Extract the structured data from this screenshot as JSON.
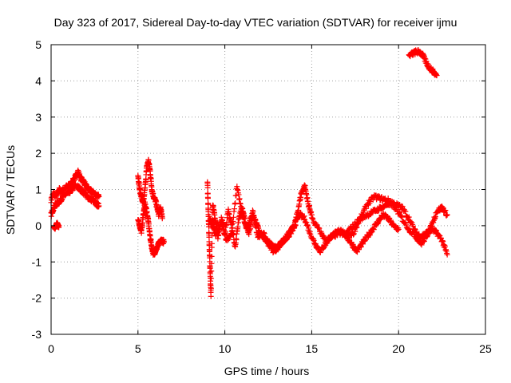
{
  "chart_data": {
    "type": "scatter",
    "title": "Day 323 of 2017, Sidereal Day-to-day VTEC variation (SDTVAR) for receiver ijmu",
    "xlabel": "GPS time / hours",
    "ylabel": "SDTVAR / TECUs",
    "xlim": [
      0,
      25
    ],
    "ylim": [
      -3,
      5
    ],
    "xticks": [
      0,
      5,
      10,
      15,
      20,
      25
    ],
    "yticks": [
      -3,
      -2,
      -1,
      0,
      1,
      2,
      3,
      4,
      5
    ],
    "grid": true,
    "marker": "+",
    "colors": {
      "series": "#ff0000",
      "grid": "#a0a0a0",
      "axis": "#000000"
    },
    "series": [
      {
        "name": "SDTVAR",
        "traces": [
          {
            "t": [
              0.0,
              0.15,
              0.3,
              0.45,
              0.6,
              0.8,
              1.0,
              1.2,
              1.4,
              1.55,
              1.7,
              1.85,
              2.0,
              2.15,
              2.3,
              2.45,
              2.6,
              2.75
            ],
            "v": [
              0.7,
              0.9,
              0.8,
              1.0,
              0.95,
              1.05,
              1.1,
              1.2,
              1.35,
              1.5,
              1.3,
              1.25,
              1.1,
              1.0,
              0.95,
              0.9,
              0.85,
              0.8
            ]
          },
          {
            "t": [
              0.0,
              0.15,
              0.3,
              0.45,
              0.6,
              0.8,
              1.0,
              1.2,
              1.4,
              1.6,
              1.8,
              2.0,
              2.2,
              2.4,
              2.6,
              2.75
            ],
            "v": [
              0.3,
              0.5,
              0.6,
              0.65,
              0.75,
              0.85,
              0.9,
              1.0,
              1.1,
              1.05,
              0.95,
              0.85,
              0.75,
              0.7,
              0.6,
              0.55
            ]
          },
          {
            "t": [
              0.15,
              0.25,
              0.35,
              0.45
            ],
            "v": [
              0.0,
              -0.05,
              0.05,
              0.0
            ]
          },
          {
            "t": [
              5.0,
              5.1,
              5.2,
              5.3,
              5.4,
              5.5,
              5.6,
              5.7,
              5.8,
              5.9,
              6.0,
              6.1,
              6.2,
              6.3,
              6.4
            ],
            "v": [
              1.4,
              1.0,
              0.8,
              0.6,
              1.0,
              1.6,
              1.8,
              1.5,
              1.0,
              0.8,
              0.7,
              0.5,
              0.3,
              0.5,
              0.2
            ]
          },
          {
            "t": [
              5.0,
              5.1,
              5.2,
              5.3,
              5.4,
              5.5,
              5.6,
              5.7,
              5.8,
              5.9,
              6.0,
              6.1,
              6.2,
              6.35,
              6.5
            ],
            "v": [
              0.2,
              0.0,
              -0.2,
              0.3,
              0.6,
              0.4,
              0.1,
              -0.3,
              -0.6,
              -0.8,
              -0.7,
              -0.6,
              -0.5,
              -0.4,
              -0.45
            ]
          },
          {
            "t": [
              9.0,
              9.05,
              9.1,
              9.15,
              9.2,
              9.3,
              9.4,
              9.5,
              9.6,
              9.8,
              10.0,
              10.2,
              10.4,
              10.6,
              10.8,
              11.0,
              11.2,
              11.4,
              11.6,
              11.8,
              12.0,
              12.2,
              12.4,
              12.6,
              12.8,
              13.0,
              13.2,
              13.4,
              13.6,
              13.8,
              14.0,
              14.2,
              14.4,
              14.6,
              14.8,
              15.0
            ],
            "v": [
              1.2,
              0.4,
              -0.4,
              -1.2,
              -1.9,
              0.6,
              0.3,
              0.0,
              -0.3,
              0.2,
              -0.2,
              0.4,
              0.0,
              -0.6,
              0.2,
              0.5,
              0.0,
              -0.2,
              0.3,
              0.1,
              -0.2,
              -0.3,
              -0.4,
              -0.5,
              -0.6,
              -0.6,
              -0.5,
              -0.4,
              -0.3,
              -0.2,
              0.0,
              0.4,
              0.9,
              1.1,
              0.6,
              0.3
            ]
          },
          {
            "t": [
              9.1,
              9.3,
              9.5,
              9.8,
              10.1,
              10.4,
              10.7,
              11.0,
              11.3,
              11.6,
              11.9,
              12.2,
              12.5,
              12.8,
              13.1,
              13.4,
              13.7,
              14.0,
              14.3,
              14.6,
              14.9,
              15.2,
              15.5,
              15.8,
              16.1,
              16.4,
              16.7,
              17.0,
              17.3,
              17.6,
              17.9,
              18.2,
              18.5,
              18.8,
              19.1,
              19.4,
              19.7,
              20.0
            ],
            "v": [
              0.2,
              0.0,
              -0.3,
              0.1,
              -0.4,
              -0.2,
              1.1,
              0.3,
              -0.1,
              0.4,
              -0.3,
              -0.2,
              -0.5,
              -0.7,
              -0.6,
              -0.4,
              -0.2,
              0.0,
              0.3,
              0.2,
              -0.2,
              -0.5,
              -0.7,
              -0.5,
              -0.3,
              -0.2,
              -0.1,
              -0.3,
              -0.5,
              -0.7,
              -0.5,
              -0.3,
              -0.1,
              0.1,
              0.3,
              0.2,
              0.0,
              -0.1
            ]
          },
          {
            "t": [
              15.0,
              15.4,
              15.8,
              16.2,
              16.6,
              17.0,
              17.4,
              17.8,
              18.2,
              18.6,
              19.0,
              19.4,
              19.8,
              20.2,
              20.6,
              21.0,
              21.3,
              21.6,
              21.9,
              22.2,
              22.5,
              22.8
            ],
            "v": [
              0.2,
              -0.1,
              -0.4,
              -0.3,
              -0.2,
              -0.3,
              -0.2,
              0.2,
              0.6,
              0.8,
              0.75,
              0.7,
              0.6,
              0.5,
              0.2,
              -0.2,
              -0.3,
              -0.2,
              -0.1,
              -0.2,
              -0.4,
              -0.8
            ]
          },
          {
            "t": [
              17.0,
              17.4,
              17.8,
              18.2,
              18.6,
              19.0,
              19.4,
              19.8,
              20.2,
              20.6,
              21.0,
              21.3,
              21.6,
              21.9,
              22.2,
              22.5,
              22.8
            ],
            "v": [
              -0.2,
              0.0,
              0.2,
              0.3,
              0.4,
              0.5,
              0.6,
              0.5,
              0.2,
              -0.1,
              -0.3,
              -0.5,
              -0.3,
              0.0,
              0.4,
              0.5,
              0.3
            ]
          },
          {
            "t": [
              20.6,
              20.8,
              21.0,
              21.2,
              21.4,
              21.6,
              21.8,
              22.0,
              22.2
            ],
            "v": [
              4.7,
              4.75,
              4.8,
              4.8,
              4.7,
              4.5,
              4.35,
              4.25,
              4.15
            ]
          }
        ]
      }
    ]
  }
}
